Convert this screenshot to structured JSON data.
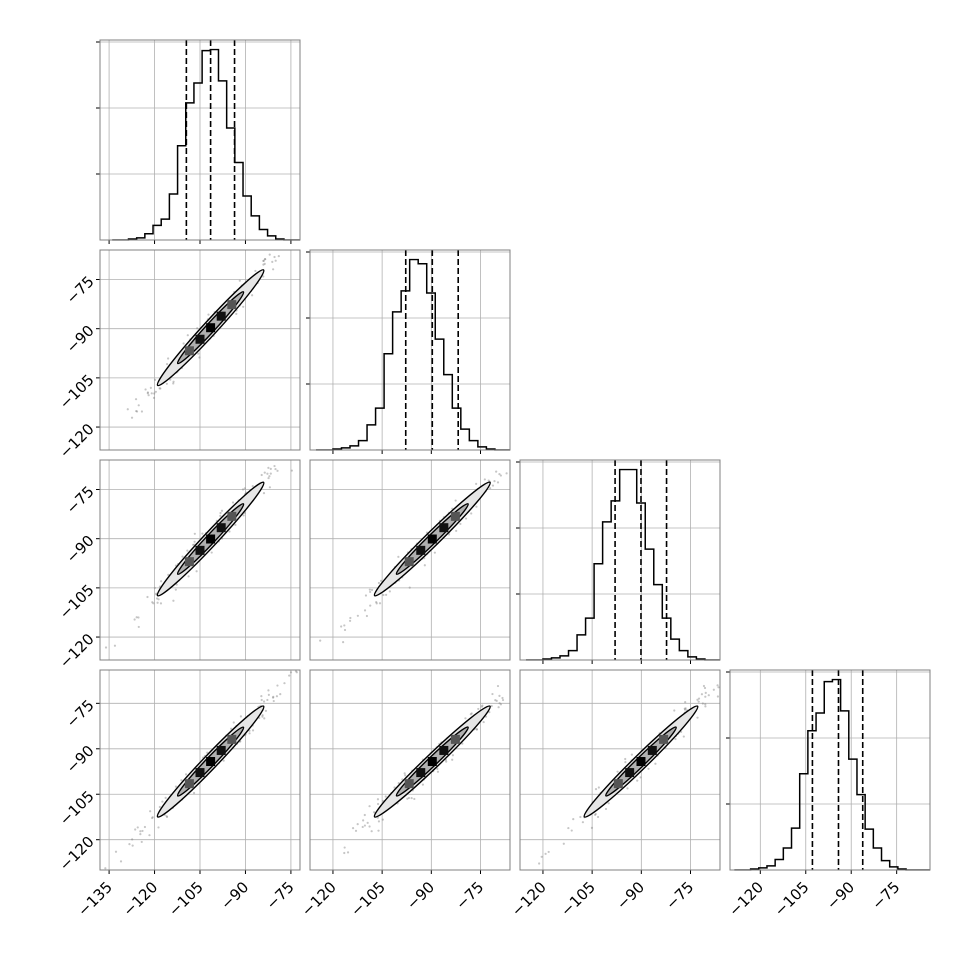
{
  "chart_data": {
    "type": "corner",
    "n_params": 4,
    "grid": true,
    "quantiles": [
      0.16,
      0.5,
      0.84
    ],
    "colors": {
      "hist_line": "#000000",
      "quantile_line": "#000000",
      "contour_line": "#000000",
      "contour_fill_outer": "#e6e6e6",
      "contour_fill_inner": "#b0b0b0",
      "points": "#808080",
      "grid": "#b0b0b0",
      "frame": "#808080"
    },
    "axis_ranges": [
      [
        -138,
        -72
      ],
      [
        -127,
        -66
      ],
      [
        -127,
        -66
      ],
      [
        -130,
        -64
      ]
    ],
    "bottom_ticks": [
      [
        -135,
        -120,
        -105,
        -90,
        -75
      ],
      [
        -120,
        -105,
        -90,
        -75
      ],
      [
        -120,
        -105,
        -90,
        -75
      ],
      [
        -120,
        -105,
        -90,
        -75
      ]
    ],
    "bottom_tick_labels": [
      [
        "−135",
        "−120",
        "−105",
        "−90",
        "−75"
      ],
      [
        "−120",
        "−105",
        "−90",
        "−75"
      ],
      [
        "−120",
        "−105",
        "−90",
        "−75"
      ],
      [
        "−120",
        "−105",
        "−90",
        "−75"
      ]
    ],
    "left_ticks": [
      -75,
      -90,
      -105,
      -120
    ],
    "left_tick_labels": [
      "−75",
      "−90",
      "−105",
      "−120"
    ],
    "diagonal": [
      {
        "quantile_values": [
          -109.5,
          -101.5,
          -93.6
        ],
        "bin_edges": [
          -134.0,
          -131.3,
          -128.6,
          -125.9,
          -123.2,
          -120.5,
          -117.8,
          -115.1,
          -112.4,
          -109.7,
          -107.0,
          -104.3,
          -101.6,
          -98.9,
          -96.2,
          -93.5,
          -90.8,
          -88.1,
          -85.4,
          -82.7,
          -80.0,
          -77.3,
          -74.6,
          -72.0
        ],
        "counts": [
          0,
          0,
          1,
          2,
          6,
          14,
          20,
          44,
          90,
          131,
          150,
          181,
          182,
          152,
          107,
          74,
          42,
          23,
          10,
          4,
          1,
          0,
          0
        ]
      },
      {
        "quantile_values": [
          -97.8,
          -89.7,
          -81.8
        ],
        "bin_edges": [
          -125.2,
          -122.6,
          -120.0,
          -117.4,
          -114.8,
          -112.2,
          -109.6,
          -107.0,
          -104.4,
          -101.8,
          -99.2,
          -96.6,
          -94.0,
          -91.4,
          -88.8,
          -86.2,
          -83.6,
          -81.0,
          -78.4,
          -75.8,
          -73.2,
          -70.6,
          -68.0,
          -66.0
        ],
        "counts": [
          0,
          0,
          1,
          2,
          4,
          9,
          24,
          40,
          92,
          132,
          152,
          182,
          178,
          150,
          106,
          72,
          40,
          20,
          9,
          3,
          1,
          0,
          0
        ]
      },
      {
        "quantile_values": [
          -98.0,
          -90.1,
          -82.3
        ],
        "bin_edges": [
          -125.2,
          -122.6,
          -120.0,
          -117.4,
          -114.8,
          -112.2,
          -109.6,
          -107.0,
          -104.4,
          -101.8,
          -99.2,
          -96.6,
          -94.0,
          -91.4,
          -88.8,
          -86.2,
          -83.6,
          -81.0,
          -78.4,
          -75.8,
          -73.2,
          -70.6,
          -68.0,
          -66.0
        ],
        "counts": [
          0,
          0,
          1,
          2,
          4,
          9,
          24,
          40,
          92,
          132,
          152,
          182,
          182,
          150,
          106,
          72,
          40,
          20,
          9,
          3,
          1,
          0,
          0
        ]
      },
      {
        "quantile_values": [
          -102.8,
          -94.2,
          -86.2
        ],
        "bin_edges": [
          -128.6,
          -125.9,
          -123.2,
          -120.5,
          -117.8,
          -115.1,
          -112.4,
          -109.7,
          -107.0,
          -104.3,
          -101.6,
          -98.9,
          -96.2,
          -93.5,
          -90.8,
          -88.1,
          -85.4,
          -82.7,
          -80.0,
          -77.3,
          -74.6,
          -71.9,
          -69.2,
          -66.5,
          -64.0
        ],
        "counts": [
          0,
          0,
          1,
          2,
          4,
          10,
          21,
          40,
          92,
          133,
          150,
          180,
          182,
          152,
          106,
          72,
          39,
          21,
          9,
          3,
          1,
          0,
          0,
          0
        ]
      }
    ]
  }
}
